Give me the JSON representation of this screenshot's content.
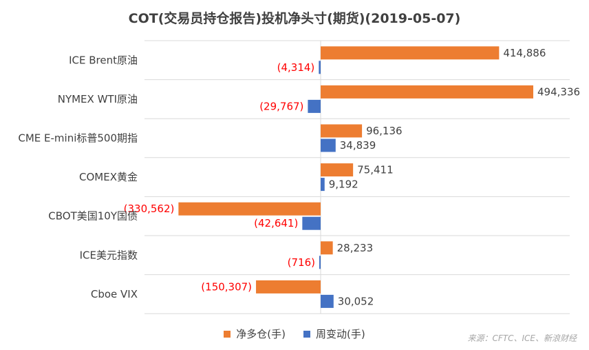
{
  "chart_data": {
    "type": "bar",
    "orientation": "horizontal",
    "title": "COT(交易员持仓报告)投机净头寸(期货)(2019-05-07)",
    "categories": [
      "ICE Brent原油",
      "NYMEX WTI原油",
      "CME E-mini标普500期指",
      "COMEX黄金",
      "CBOT美国10Y国债",
      "ICE美元指数",
      "Cboe VIX"
    ],
    "series": [
      {
        "name": "净多仓(手)",
        "values": [
          414886,
          494336,
          96136,
          75411,
          -330562,
          28233,
          -150307
        ],
        "labels": [
          "414,886",
          "494,336",
          "96,136",
          "75,411",
          "(330,562)",
          "28,233",
          "(150,307)"
        ],
        "color": "#ED7D31"
      },
      {
        "name": "周变动(手)",
        "values": [
          -4314,
          -29767,
          34839,
          9192,
          -42641,
          -716,
          30052
        ],
        "labels": [
          "(4,314)",
          "(29,767)",
          "34,839",
          "9,192",
          "(42,641)",
          "(716)",
          "30,052"
        ],
        "color": "#4472C4"
      }
    ],
    "negative_label_color": "#FF0000",
    "positive_label_color": "#404040",
    "legend_position": "bottom",
    "grid": "horizontal category separators"
  },
  "source_note": "来源：CFTC、ICE、新浪财经"
}
